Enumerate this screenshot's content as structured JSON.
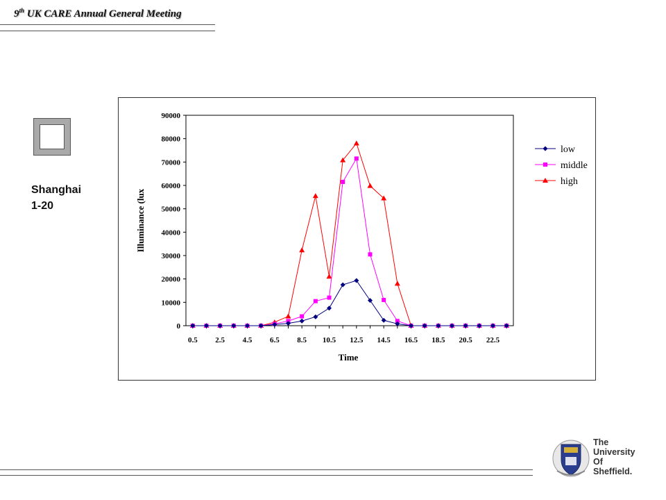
{
  "header": {
    "title_sup": "th",
    "title_num": "9",
    "title_text": "UK CARE Annual General Meeting"
  },
  "side": {
    "line1": "Shanghai",
    "line2": "1-20"
  },
  "logo": {
    "line1": "The",
    "line2": "University",
    "line3": "Of",
    "line4": "Sheffield."
  },
  "colors": {
    "low": "#000080",
    "middle": "#ff00ff",
    "high": "#ff0000"
  },
  "chart_data": {
    "type": "line",
    "title": "",
    "xlabel": "Time",
    "ylabel": "Illuminance (lux",
    "ylim": [
      0,
      90000
    ],
    "yticks": [
      "0",
      "10000",
      "20000",
      "30000",
      "40000",
      "50000",
      "60000",
      "70000",
      "80000",
      "90000"
    ],
    "x": [
      0.5,
      1.5,
      2.5,
      3.5,
      4.5,
      5.5,
      6.5,
      7.5,
      8.5,
      9.5,
      10.5,
      11.5,
      12.5,
      13.5,
      14.5,
      15.5,
      16.5,
      17.5,
      18.5,
      19.5,
      20.5,
      21.5,
      22.5,
      23.5
    ],
    "xticklabels": [
      "0.5",
      "2.5",
      "4.5",
      "6.5",
      "8.5",
      "10.5",
      "12.5",
      "14.5",
      "16.5",
      "18.5",
      "20.5",
      "22.5"
    ],
    "legend_position": "right",
    "grid": false,
    "series": [
      {
        "name": "low",
        "marker": "diamond",
        "values": [
          0,
          0,
          0,
          0,
          0,
          0,
          500,
          1000,
          2000,
          3800,
          7500,
          17500,
          19300,
          10800,
          2300,
          800,
          0,
          0,
          0,
          0,
          0,
          0,
          0,
          0
        ]
      },
      {
        "name": "middle",
        "marker": "square",
        "values": [
          0,
          0,
          0,
          0,
          0,
          0,
          800,
          2000,
          4000,
          10500,
          12000,
          61500,
          71500,
          30500,
          11000,
          2000,
          0,
          0,
          0,
          0,
          0,
          0,
          0,
          0
        ]
      },
      {
        "name": "high",
        "marker": "triangle",
        "values": [
          0,
          0,
          0,
          0,
          0,
          0,
          1500,
          4000,
          32300,
          55500,
          21000,
          70800,
          78000,
          59800,
          54500,
          18000,
          0,
          0,
          0,
          0,
          0,
          0,
          0,
          0
        ]
      }
    ]
  }
}
